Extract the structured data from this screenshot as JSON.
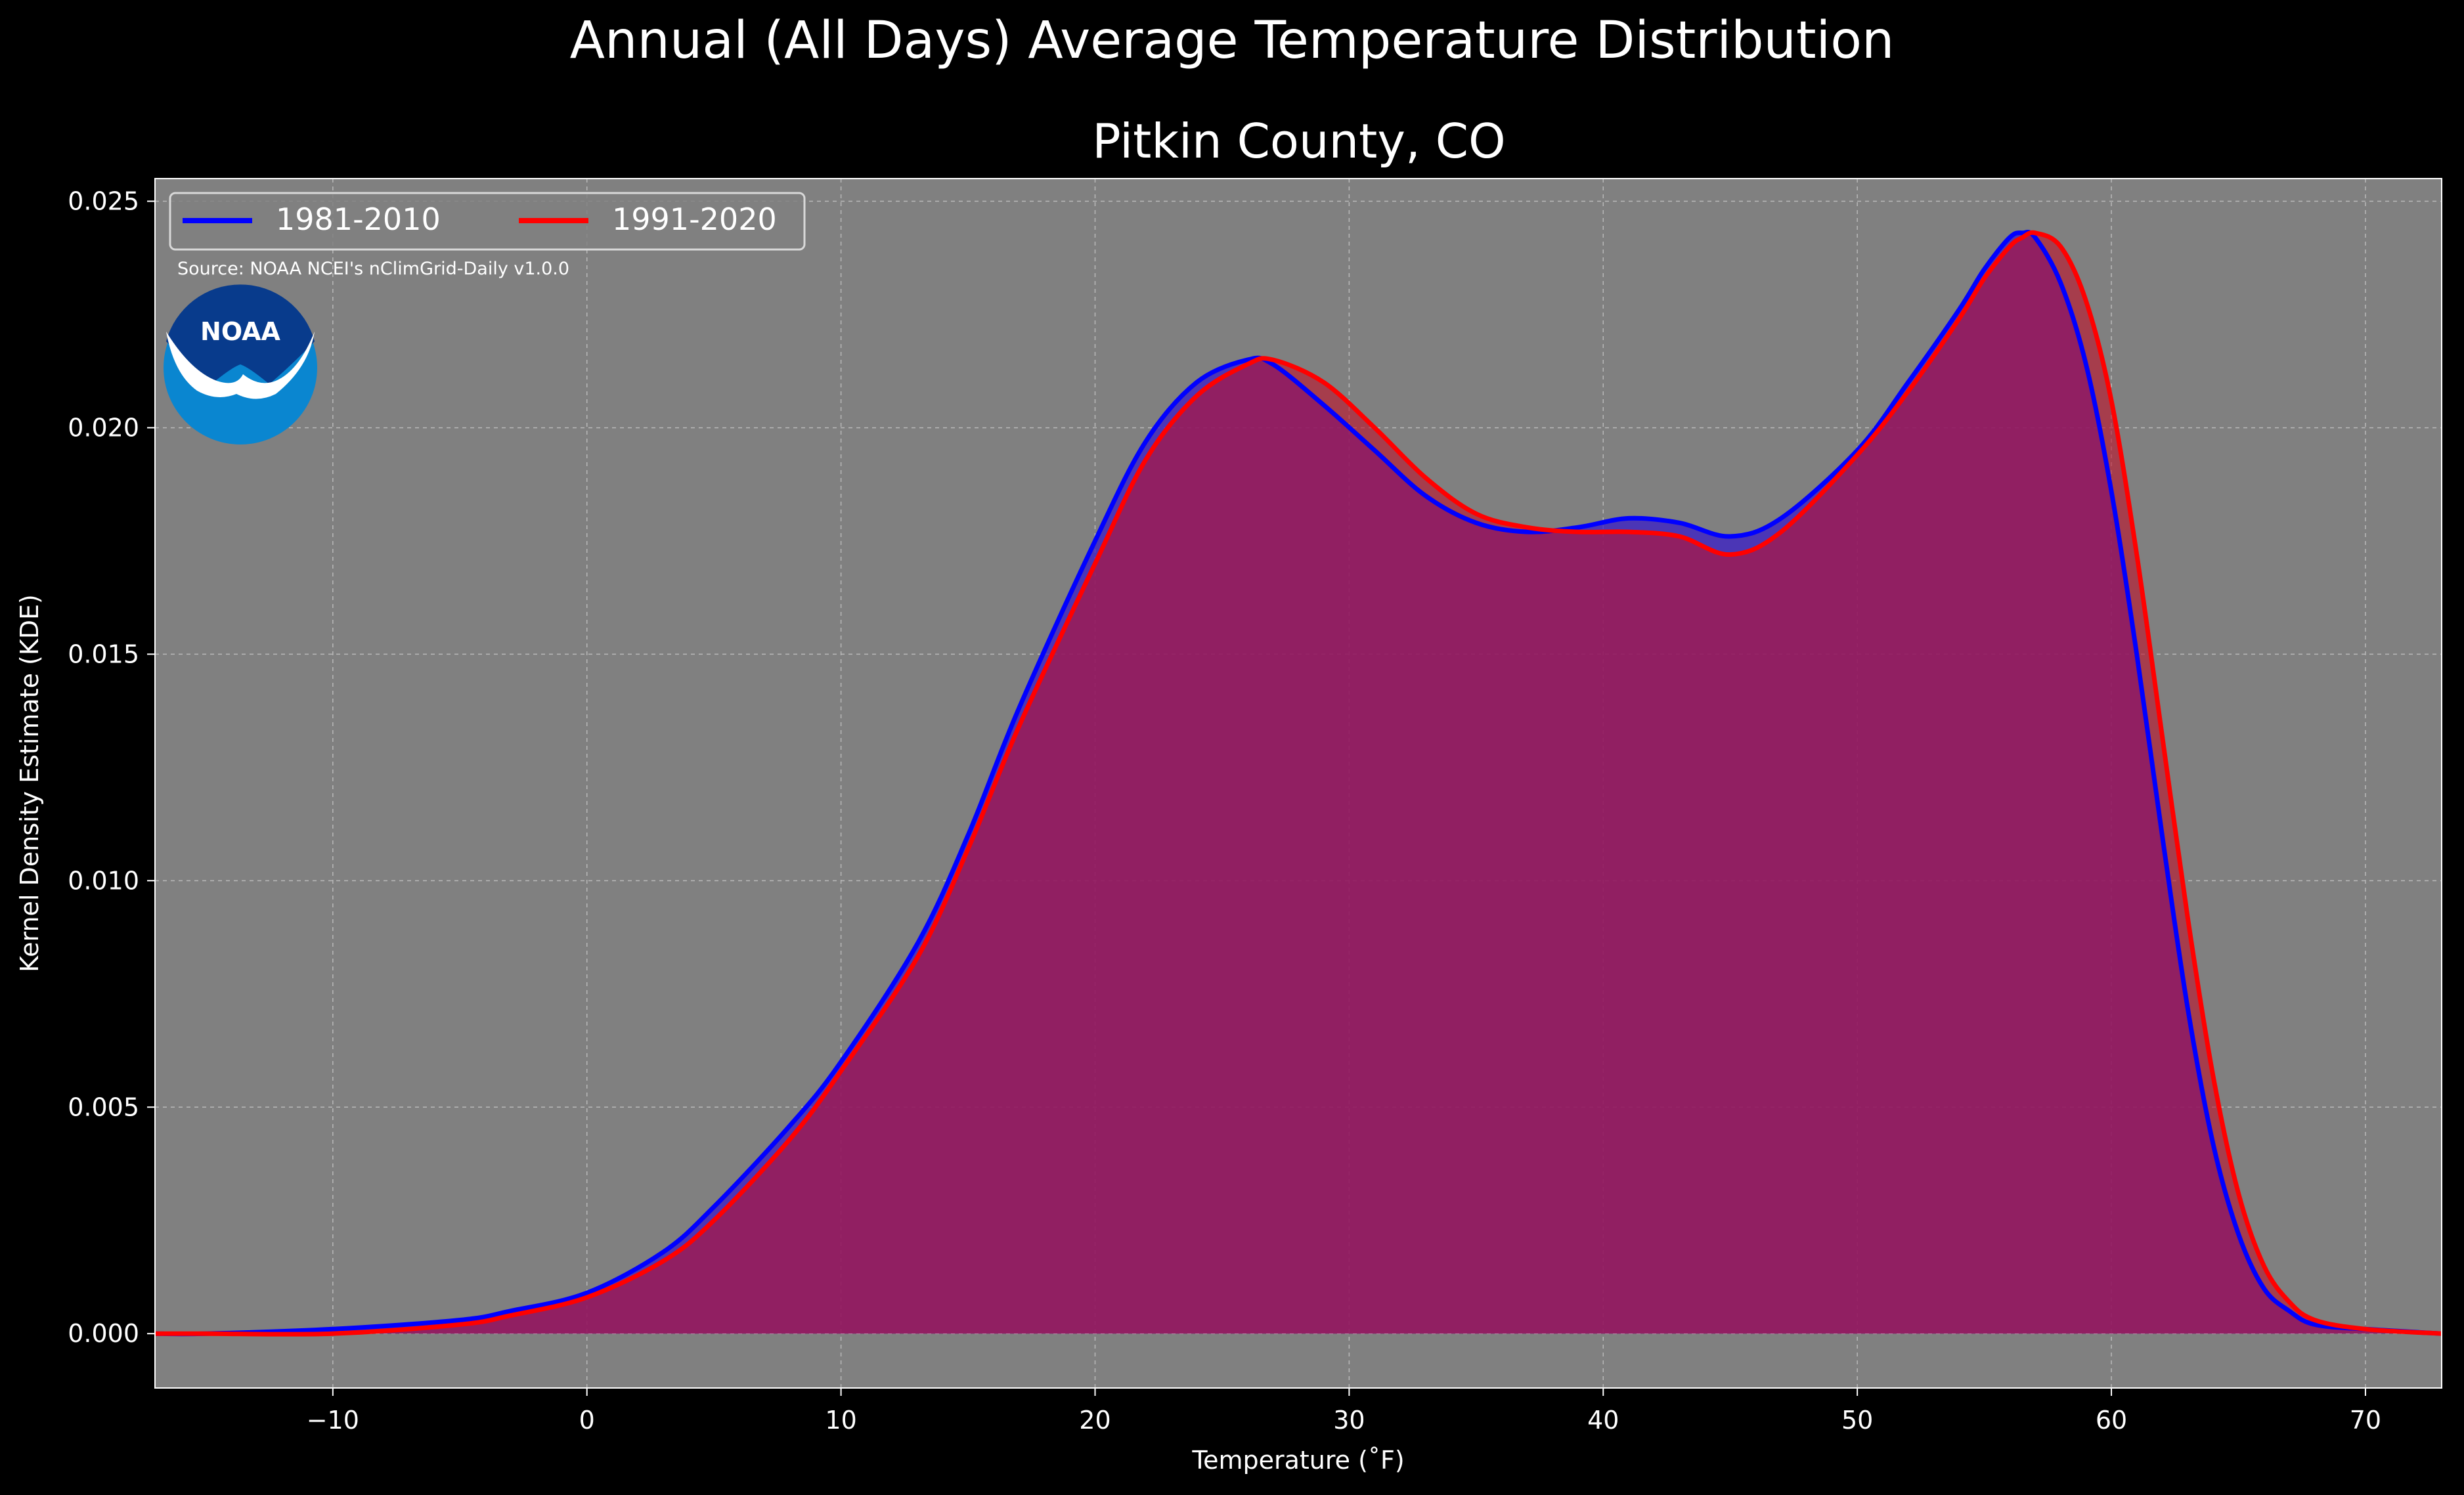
{
  "chart_data": {
    "type": "area",
    "title": "Annual (All Days) Average Temperature Distribution",
    "subtitle": "Pitkin County, CO",
    "xlabel": "Temperature ($^\\circ$F)",
    "xlabel_display": "Temperature (˚F)",
    "ylabel": "Kernel Density Estimate (KDE)",
    "xlim": [
      -17,
      73
    ],
    "ylim": [
      -0.0012,
      0.0255
    ],
    "x_ticks": [
      -10,
      0,
      10,
      20,
      30,
      40,
      50,
      60,
      70
    ],
    "x_tick_labels": [
      "−10",
      "0",
      "10",
      "20",
      "30",
      "40",
      "50",
      "60",
      "70"
    ],
    "y_ticks": [
      0.0,
      0.005,
      0.01,
      0.015,
      0.02,
      0.025
    ],
    "y_tick_labels": [
      "0.000",
      "0.005",
      "0.010",
      "0.015",
      "0.020",
      "0.025"
    ],
    "grid": true,
    "legend_position": "top-left",
    "source_note": "Source: NOAA NCEI's nClimGrid-Daily v1.0.0",
    "logo_text": "NOAA",
    "colors": {
      "figure_background": "#000000",
      "axes_background": "#808080",
      "grid": "#b8b8b8",
      "text": "#ffffff"
    },
    "x": [
      -17,
      -15,
      -10,
      -5,
      -3,
      0,
      3,
      5,
      8,
      10,
      13,
      15,
      17,
      20,
      22,
      24,
      26,
      27,
      29,
      31,
      33,
      35,
      37,
      39,
      41,
      43,
      45,
      47,
      50,
      52,
      54,
      55,
      56,
      56.5,
      57,
      58,
      59,
      60,
      61,
      62,
      63,
      64,
      65,
      66,
      67,
      68,
      70,
      73
    ],
    "series": [
      {
        "name": "1981-2010",
        "color": "#0000ff",
        "fill": "#3a1ec8",
        "values": [
          0.0,
          0.0,
          0.0001,
          0.0003,
          0.0005,
          0.0009,
          0.0018,
          0.0028,
          0.0046,
          0.006,
          0.0086,
          0.011,
          0.0138,
          0.0175,
          0.0197,
          0.021,
          0.0215,
          0.0214,
          0.0205,
          0.0195,
          0.0185,
          0.0179,
          0.0177,
          0.0178,
          0.018,
          0.0179,
          0.0176,
          0.018,
          0.0195,
          0.021,
          0.0226,
          0.0235,
          0.0242,
          0.0243,
          0.0242,
          0.0232,
          0.0214,
          0.0186,
          0.015,
          0.011,
          0.0072,
          0.0042,
          0.0022,
          0.001,
          0.0005,
          0.0002,
          0.0001,
          0.0
        ]
      },
      {
        "name": "1991-2020",
        "color": "#ff0000",
        "fill": "#c0102a",
        "values": [
          0.0,
          0.0,
          0.0,
          0.0002,
          0.0004,
          0.0008,
          0.0016,
          0.0025,
          0.0043,
          0.0058,
          0.0083,
          0.0107,
          0.0134,
          0.017,
          0.0193,
          0.0207,
          0.0214,
          0.0215,
          0.021,
          0.02,
          0.0189,
          0.0181,
          0.0178,
          0.0177,
          0.0177,
          0.0176,
          0.0172,
          0.0177,
          0.0194,
          0.0208,
          0.0224,
          0.0233,
          0.024,
          0.0242,
          0.0243,
          0.024,
          0.0228,
          0.0206,
          0.0172,
          0.0132,
          0.0092,
          0.0057,
          0.0031,
          0.0015,
          0.0007,
          0.0003,
          0.0001,
          0.0
        ]
      }
    ]
  }
}
